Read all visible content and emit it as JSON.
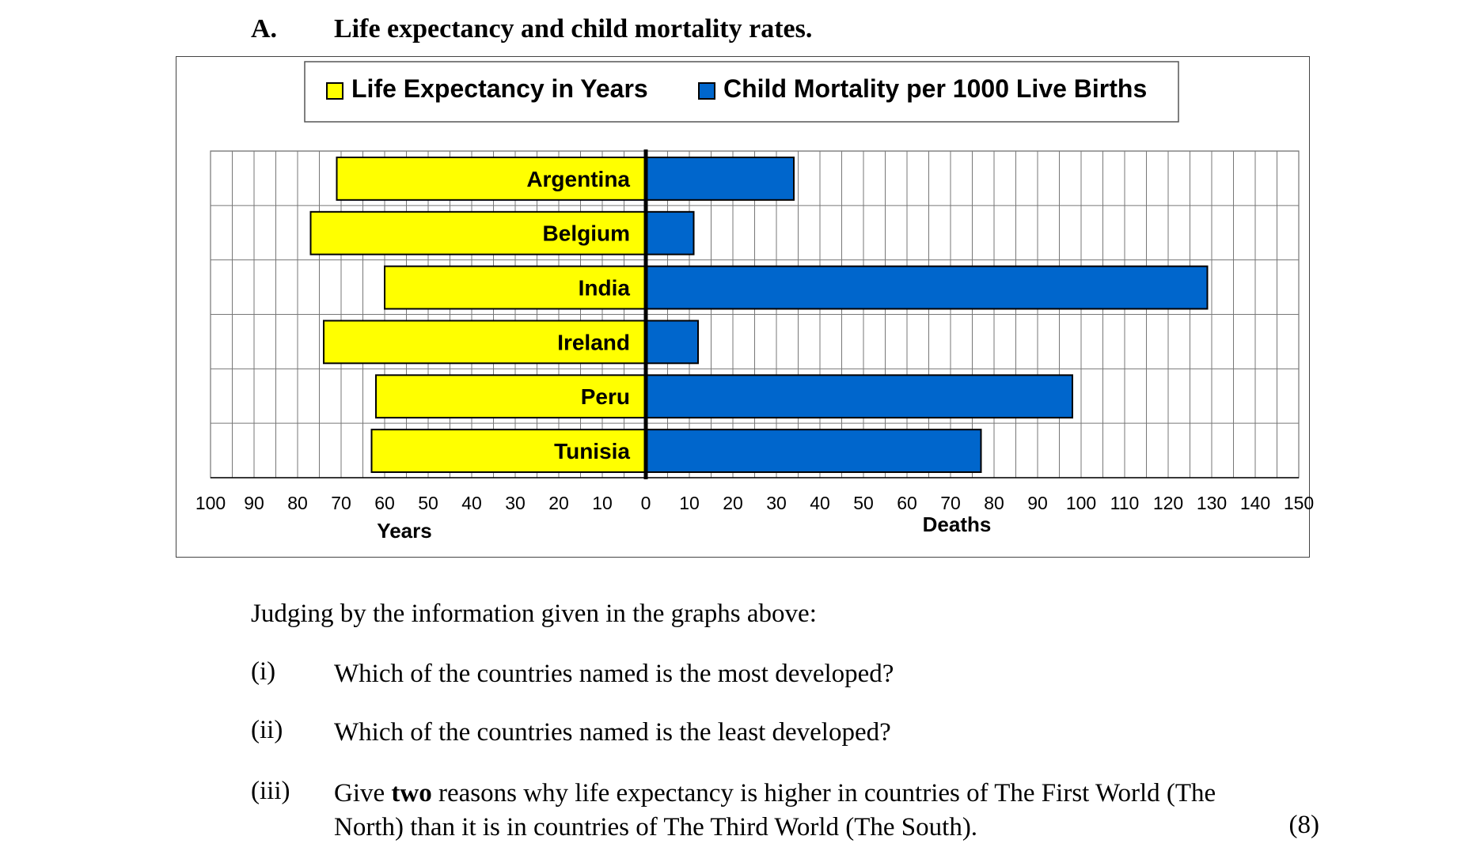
{
  "section": {
    "letter": "A.",
    "title": "Life expectancy and child mortality rates."
  },
  "chart_data": {
    "type": "bar",
    "orientation": "horizontal",
    "layout": "back-to-back",
    "categories": [
      "Argentina",
      "Belgium",
      "India",
      "Ireland",
      "Peru",
      "Tunisia"
    ],
    "series": [
      {
        "name": "Life Expectancy in Years",
        "color": "#ffff00",
        "direction": "left",
        "values": [
          71,
          77,
          60,
          74,
          62,
          63
        ]
      },
      {
        "name": "Child Mortality per 1000 Live Births",
        "color": "#0066cc",
        "direction": "right",
        "values": [
          34,
          11,
          129,
          12,
          98,
          77
        ]
      }
    ],
    "left_axis": {
      "label": "Years",
      "range": [
        0,
        100
      ],
      "ticks": [
        100,
        90,
        80,
        70,
        60,
        50,
        40,
        30,
        20,
        10
      ]
    },
    "right_axis": {
      "label": "Deaths",
      "range": [
        0,
        150
      ],
      "ticks": [
        0,
        10,
        20,
        30,
        40,
        50,
        60,
        70,
        80,
        90,
        100,
        110,
        120,
        130,
        140,
        150
      ]
    },
    "grid": true,
    "legend_position": "top"
  },
  "questions": {
    "intro": "Judging by the information given in the graphs above:",
    "items": [
      {
        "num": "(i)",
        "text": "Which of the countries named is the most developed?"
      },
      {
        "num": "(ii)",
        "text": "Which of the countries named is the least developed?"
      },
      {
        "num": "(iii)",
        "text_a": "Give ",
        "text_bold": "two",
        "text_b": " reasons why life expectancy is higher in countries of The First World (The",
        "text_line2": "North) than it is in countries of The Third World (The South).",
        "mark": "(8)"
      }
    ]
  }
}
